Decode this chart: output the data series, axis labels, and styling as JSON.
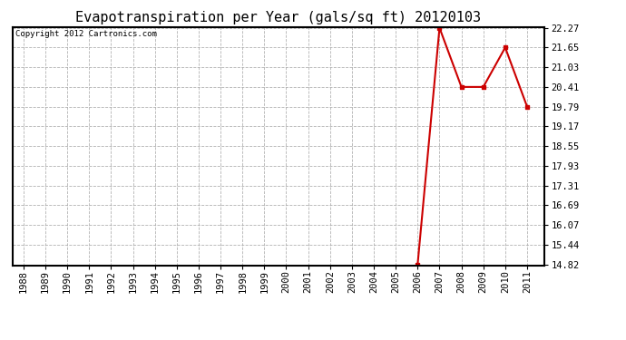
{
  "title": "Evapotranspiration per Year (gals/sq ft) 20120103",
  "copyright_text": "Copyright 2012 Cartronics.com",
  "x_years": [
    1988,
    1989,
    1990,
    1991,
    1992,
    1993,
    1994,
    1995,
    1996,
    1997,
    1998,
    1999,
    2000,
    2001,
    2002,
    2003,
    2004,
    2005,
    2006,
    2007,
    2008,
    2009,
    2010,
    2011
  ],
  "y_values": [
    null,
    null,
    null,
    null,
    null,
    null,
    null,
    null,
    null,
    null,
    null,
    null,
    null,
    null,
    null,
    null,
    null,
    null,
    14.82,
    22.27,
    20.41,
    20.41,
    21.65,
    19.79
  ],
  "y_min": 14.82,
  "y_max": 22.27,
  "y_ticks": [
    14.82,
    15.44,
    16.07,
    16.69,
    17.31,
    17.93,
    18.55,
    19.17,
    19.79,
    20.41,
    21.03,
    21.65,
    22.27
  ],
  "line_color": "#cc0000",
  "marker": "s",
  "marker_size": 3,
  "background_color": "#ffffff",
  "plot_bg_color": "#ffffff",
  "grid_color": "#aaaaaa",
  "title_fontsize": 11,
  "tick_fontsize": 7.5,
  "copyright_fontsize": 6.5
}
